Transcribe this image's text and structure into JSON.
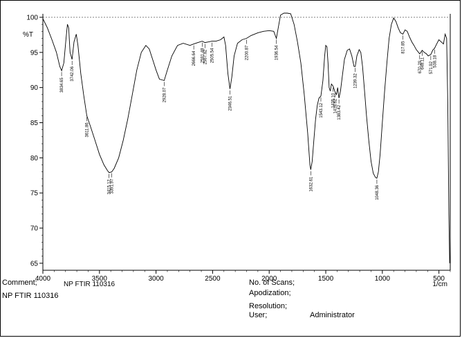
{
  "chart_data": {
    "type": "line",
    "title": "",
    "xlabel": "1/cm",
    "ylabel": "%T",
    "xlim": [
      4000,
      400
    ],
    "ylim": [
      64,
      100
    ],
    "x_ticks": [
      4000,
      3500,
      3000,
      2500,
      2000,
      1500,
      1000,
      500
    ],
    "y_ticks": [
      65,
      70,
      75,
      80,
      85,
      90,
      95,
      100
    ],
    "grid": false,
    "reference_line": 100,
    "series": [
      {
        "points": [
          [
            4000,
            99.8
          ],
          [
            3960,
            98.5
          ],
          [
            3920,
            96.8
          ],
          [
            3880,
            95.0
          ],
          [
            3850,
            93.0
          ],
          [
            3834.65,
            92.4
          ],
          [
            3815,
            93.5
          ],
          [
            3795,
            97.0
          ],
          [
            3783,
            99.0
          ],
          [
            3772,
            98.5
          ],
          [
            3760,
            95.0
          ],
          [
            3742.06,
            94.0
          ],
          [
            3725,
            96.5
          ],
          [
            3705,
            97.6
          ],
          [
            3690,
            96.0
          ],
          [
            3665,
            92.0
          ],
          [
            3640,
            89.0
          ],
          [
            3611.86,
            86.0
          ],
          [
            3580,
            84.5
          ],
          [
            3540,
            82.5
          ],
          [
            3500,
            80.5
          ],
          [
            3460,
            79.0
          ],
          [
            3430,
            78.2
          ],
          [
            3415.12,
            77.9
          ],
          [
            3391.97,
            78.0
          ],
          [
            3370,
            78.5
          ],
          [
            3330,
            80.0
          ],
          [
            3290,
            82.5
          ],
          [
            3250,
            85.5
          ],
          [
            3210,
            89.0
          ],
          [
            3170,
            92.5
          ],
          [
            3130,
            95.0
          ],
          [
            3090,
            96.0
          ],
          [
            3060,
            95.5
          ],
          [
            3030,
            94.0
          ],
          [
            3000,
            92.5
          ],
          [
            2970,
            91.2
          ],
          [
            2928.07,
            91.0
          ],
          [
            2900,
            92.5
          ],
          [
            2860,
            94.5
          ],
          [
            2810,
            96.0
          ],
          [
            2760,
            96.3
          ],
          [
            2700,
            96.0
          ],
          [
            2666.64,
            96.2
          ],
          [
            2630,
            96.4
          ],
          [
            2591.48,
            96.6
          ],
          [
            2567.82,
            96.4
          ],
          [
            2535,
            96.5
          ],
          [
            2505.54,
            96.6
          ],
          [
            2470,
            96.6
          ],
          [
            2430,
            96.8
          ],
          [
            2400,
            97.2
          ],
          [
            2385,
            96.0
          ],
          [
            2365,
            92.0
          ],
          [
            2346.51,
            89.8
          ],
          [
            2330,
            91.5
          ],
          [
            2310,
            94.5
          ],
          [
            2280,
            96.3
          ],
          [
            2240,
            96.8
          ],
          [
            2200.87,
            97.0
          ],
          [
            2160,
            97.4
          ],
          [
            2100,
            97.8
          ],
          [
            2050,
            98.0
          ],
          [
            2000,
            98.1
          ],
          [
            1960,
            98.0
          ],
          [
            1936.54,
            97.0
          ],
          [
            1920,
            98.5
          ],
          [
            1900,
            100.3
          ],
          [
            1870,
            101.5
          ],
          [
            1840,
            101.5
          ],
          [
            1810,
            100.5
          ],
          [
            1780,
            99.0
          ],
          [
            1750,
            96.5
          ],
          [
            1720,
            93.5
          ],
          [
            1690,
            89.0
          ],
          [
            1660,
            83.5
          ],
          [
            1640,
            79.0
          ],
          [
            1632.61,
            78.3
          ],
          [
            1620,
            79.5
          ],
          [
            1605,
            82.5
          ],
          [
            1590,
            85.5
          ],
          [
            1575,
            87.5
          ],
          [
            1560,
            88.5
          ],
          [
            1543.12,
            88.8
          ],
          [
            1525,
            91.0
          ],
          [
            1510,
            94.5
          ],
          [
            1500,
            96.0
          ],
          [
            1490,
            95.8
          ],
          [
            1480,
            93.5
          ],
          [
            1470,
            90.0
          ],
          [
            1460,
            89.5
          ],
          [
            1450,
            90.5
          ],
          [
            1435.1,
            90.2
          ],
          [
            1418.62,
            89.4
          ],
          [
            1405,
            89.0
          ],
          [
            1395,
            90.0
          ],
          [
            1383.42,
            88.5
          ],
          [
            1370,
            89.5
          ],
          [
            1355,
            91.5
          ],
          [
            1335,
            94.0
          ],
          [
            1310,
            95.3
          ],
          [
            1290,
            95.5
          ],
          [
            1270,
            94.5
          ],
          [
            1250,
            93.0
          ],
          [
            1239.32,
            93.0
          ],
          [
            1225,
            94.5
          ],
          [
            1205,
            95.4
          ],
          [
            1190,
            95.0
          ],
          [
            1175,
            93.0
          ],
          [
            1160,
            90.0
          ],
          [
            1140,
            86.0
          ],
          [
            1120,
            82.5
          ],
          [
            1100,
            79.5
          ],
          [
            1080,
            77.8
          ],
          [
            1060,
            77.2
          ],
          [
            1048.36,
            77.1
          ],
          [
            1035,
            78.0
          ],
          [
            1020,
            80.5
          ],
          [
            1000,
            85.0
          ],
          [
            980,
            89.5
          ],
          [
            960,
            93.5
          ],
          [
            940,
            97.0
          ],
          [
            920,
            99.0
          ],
          [
            900,
            99.9
          ],
          [
            880,
            99.4
          ],
          [
            860,
            98.5
          ],
          [
            840,
            97.8
          ],
          [
            817.85,
            97.6
          ],
          [
            800,
            98.2
          ],
          [
            780,
            98.0
          ],
          [
            760,
            97.2
          ],
          [
            740,
            96.5
          ],
          [
            720,
            96.0
          ],
          [
            700,
            95.4
          ],
          [
            680,
            95.0
          ],
          [
            670.29,
            94.8
          ],
          [
            660,
            95.0
          ],
          [
            648.11,
            95.3
          ],
          [
            630,
            95.0
          ],
          [
            610,
            94.8
          ],
          [
            595,
            94.5
          ],
          [
            571.92,
            94.7
          ],
          [
            555,
            95.3
          ],
          [
            538.18,
            95.6
          ],
          [
            520,
            96.2
          ],
          [
            500,
            96.8
          ],
          [
            480,
            96.5
          ],
          [
            460,
            96.2
          ],
          [
            445,
            97.6
          ],
          [
            432,
            97.0
          ],
          [
            422,
            88.0
          ],
          [
            412,
            72.0
          ],
          [
            405,
            65.0
          ]
        ]
      }
    ],
    "peak_labels": [
      {
        "x": 3834.65,
        "y": 92.4,
        "label": "3834.65"
      },
      {
        "x": 3742.06,
        "y": 94.0,
        "label": "3742.06"
      },
      {
        "x": 3611.86,
        "y": 86.0,
        "label": "3611.86"
      },
      {
        "x": 3415.12,
        "y": 77.9,
        "label": "3415.12"
      },
      {
        "x": 3391.97,
        "y": 78.0,
        "label": "3391.97"
      },
      {
        "x": 2928.07,
        "y": 91.0,
        "label": "2928.07"
      },
      {
        "x": 2666.64,
        "y": 96.2,
        "label": "2666.64"
      },
      {
        "x": 2591.48,
        "y": 96.6,
        "label": "2591.48"
      },
      {
        "x": 2567.82,
        "y": 96.4,
        "label": "2567.82"
      },
      {
        "x": 2505.54,
        "y": 96.6,
        "label": "2505.54"
      },
      {
        "x": 2346.51,
        "y": 89.8,
        "label": "2346.51"
      },
      {
        "x": 2200.87,
        "y": 97.0,
        "label": "2200.87"
      },
      {
        "x": 1936.54,
        "y": 97.0,
        "label": "1936.54"
      },
      {
        "x": 1632.61,
        "y": 78.3,
        "label": "1632.61"
      },
      {
        "x": 1543.12,
        "y": 88.8,
        "label": "1543.12"
      },
      {
        "x": 1435.1,
        "y": 90.2,
        "label": "1435.10"
      },
      {
        "x": 1418.62,
        "y": 89.4,
        "label": "1418.62"
      },
      {
        "x": 1383.42,
        "y": 88.5,
        "label": "1383.42"
      },
      {
        "x": 1239.32,
        "y": 93.0,
        "label": "1239.32"
      },
      {
        "x": 1048.36,
        "y": 77.1,
        "label": "1048.36"
      },
      {
        "x": 817.85,
        "y": 97.6,
        "label": "817.85"
      },
      {
        "x": 670.29,
        "y": 94.8,
        "label": "670.29"
      },
      {
        "x": 648.11,
        "y": 95.3,
        "label": "648.11"
      },
      {
        "x": 571.92,
        "y": 94.7,
        "label": "571.92"
      },
      {
        "x": 538.18,
        "y": 95.6,
        "label": "538.18"
      }
    ]
  },
  "sample_name_axis": "NP  FTIR 110316",
  "info": {
    "comment_label": "Comment;",
    "comment_value": "NP  FTIR 110316",
    "scans_label": "No. of Scans;",
    "apodization_label": "Apodization;",
    "resolution_label": "Resolution;",
    "user_label": "User;",
    "user_value": "Administrator"
  }
}
